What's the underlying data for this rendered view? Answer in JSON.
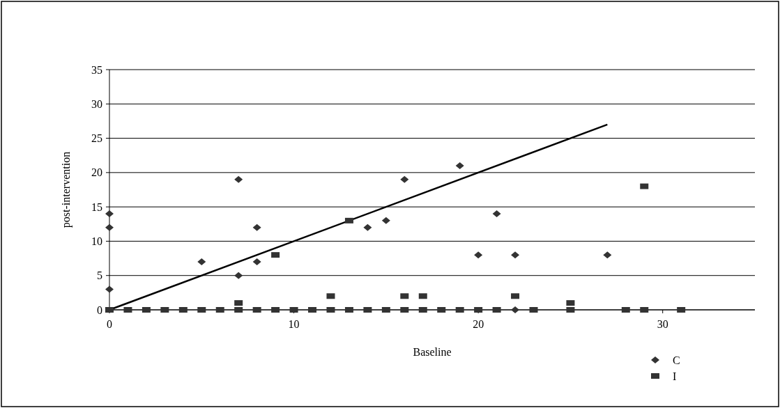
{
  "chart_data": {
    "type": "scatter",
    "xlabel": "Baseline",
    "ylabel": "post-intervention",
    "xlim": [
      0,
      35
    ],
    "xticks": [
      0,
      10,
      20,
      30
    ],
    "ylim": [
      0,
      35
    ],
    "yticks": [
      0,
      5,
      10,
      15,
      20,
      25,
      30,
      35
    ],
    "grid": "y",
    "legend": "bottom right",
    "series": [
      {
        "name": "C",
        "color": "#333333",
        "marker": "diamond",
        "x": [
          0,
          0,
          0,
          5,
          7,
          7,
          8,
          8,
          14,
          15,
          16,
          19,
          20,
          21,
          22,
          22,
          27
        ],
        "values": [
          14,
          12,
          3,
          7,
          19,
          5,
          12,
          7,
          12,
          13,
          19,
          21,
          8,
          14,
          8,
          0,
          8
        ]
      },
      {
        "name": "I",
        "color": "#333333",
        "marker": "square",
        "x": [
          0,
          1,
          2,
          3,
          4,
          5,
          6,
          7,
          7,
          8,
          9,
          10,
          11,
          12,
          13,
          14,
          15,
          16,
          17,
          18,
          19,
          20,
          21,
          23,
          25,
          25,
          28,
          29,
          31,
          9,
          12,
          13,
          16,
          17,
          22,
          29
        ],
        "values": [
          0,
          0,
          0,
          0,
          0,
          0,
          0,
          0,
          1,
          0,
          0,
          0,
          0,
          0,
          0,
          0,
          0,
          0,
          0,
          0,
          0,
          0,
          0,
          0,
          0,
          1,
          0,
          0,
          0,
          8,
          2,
          13,
          2,
          2,
          2,
          18
        ]
      },
      {
        "type": "line",
        "color": "#000000",
        "marker": "none",
        "line_style": "solid",
        "x": [
          0,
          27
        ],
        "values": [
          0,
          27
        ]
      }
    ]
  }
}
